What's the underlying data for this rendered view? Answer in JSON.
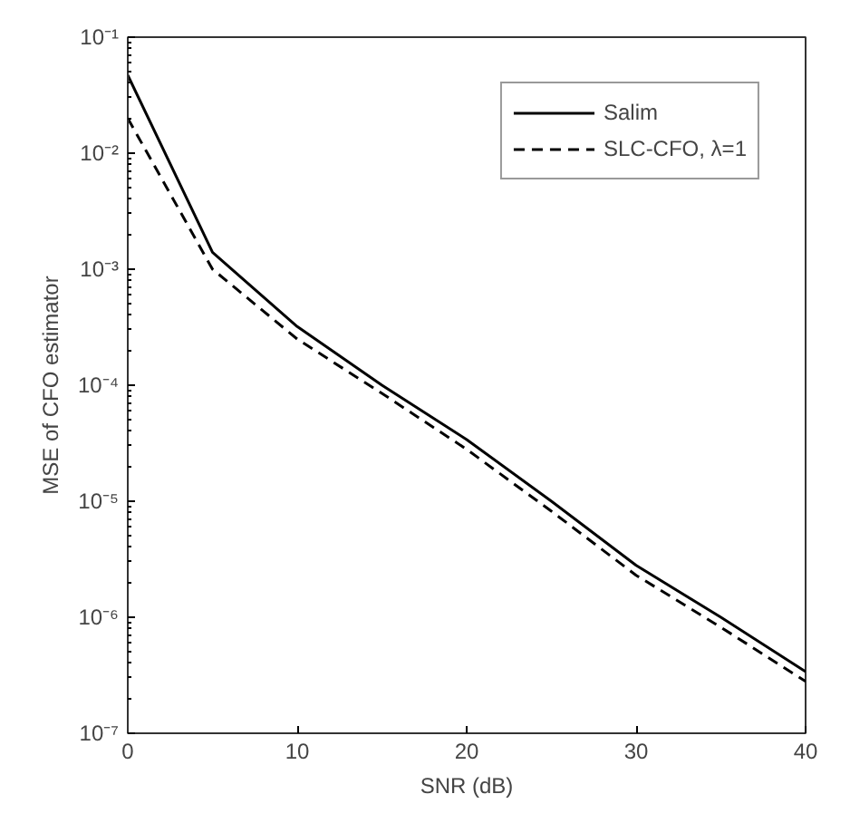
{
  "chart_data": {
    "type": "line",
    "xlabel": "SNR (dB)",
    "ylabel": "MSE of CFO estimator",
    "x": [
      0,
      5,
      10,
      15,
      20,
      25,
      30,
      35,
      40
    ],
    "series": [
      {
        "name": "Salim",
        "color": "#000000",
        "line_style": "solid",
        "values": [
          0.047,
          0.0014,
          0.00032,
          0.0001,
          3.4e-05,
          1e-05,
          2.8e-06,
          1e-06,
          3.4e-07
        ]
      },
      {
        "name": "SLC-CFO, λ=1",
        "color": "#000000",
        "line_style": "dashed",
        "values": [
          0.02,
          0.001,
          0.00025,
          8.5e-05,
          2.8e-05,
          8.2e-06,
          2.3e-06,
          8.2e-07,
          2.8e-07
        ]
      }
    ],
    "log": "y",
    "xlim": [
      0,
      40
    ],
    "xticks": [
      0,
      10,
      20,
      30,
      40
    ],
    "ylim": [
      1e-07,
      0.1
    ],
    "yticks": [
      {
        "value": 1e-07,
        "label": "10⁻⁷"
      },
      {
        "value": 1e-06,
        "label": "10⁻⁶"
      },
      {
        "value": 1e-05,
        "label": "10⁻⁵"
      },
      {
        "value": 0.0001,
        "label": "10⁻⁴"
      },
      {
        "value": 0.001,
        "label": "10⁻³"
      },
      {
        "value": 0.01,
        "label": "10⁻²"
      },
      {
        "value": 0.1,
        "label": "10⁻¹"
      }
    ],
    "grid": false,
    "legend": "top right",
    "marker": "none"
  }
}
